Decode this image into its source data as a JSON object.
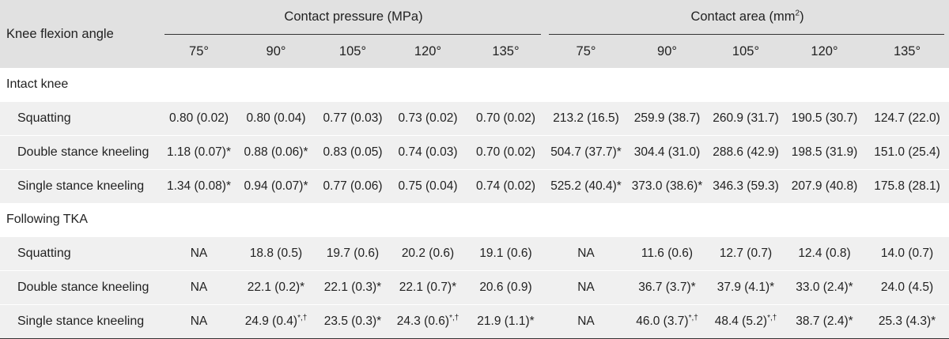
{
  "header": {
    "corner_label": "Knee flexion angle",
    "group_pressure": "Contact pressure (MPa)",
    "group_area_prefix": "Contact area (mm",
    "group_area_sup": "2",
    "group_area_suffix": ")",
    "angles": [
      "75°",
      "90°",
      "105°",
      "120°",
      "135°"
    ]
  },
  "sections": [
    {
      "title": "Intact knee",
      "rows": [
        {
          "label": "Squatting",
          "cells": [
            {
              "v": "0.80 (0.02)",
              "m": ""
            },
            {
              "v": "0.80 (0.04)",
              "m": ""
            },
            {
              "v": "0.77 (0.03)",
              "m": ""
            },
            {
              "v": "0.73 (0.02)",
              "m": ""
            },
            {
              "v": "0.70 (0.02)",
              "m": ""
            },
            {
              "v": "213.2 (16.5)",
              "m": ""
            },
            {
              "v": "259.9 (38.7)",
              "m": ""
            },
            {
              "v": "260.9 (31.7)",
              "m": ""
            },
            {
              "v": "190.5 (30.7)",
              "m": ""
            },
            {
              "v": "124.7 (22.0)",
              "m": ""
            }
          ]
        },
        {
          "label": "Double stance kneeling",
          "cells": [
            {
              "v": "1.18 (0.07)*",
              "m": ""
            },
            {
              "v": "0.88 (0.06)*",
              "m": ""
            },
            {
              "v": "0.83 (0.05)",
              "m": ""
            },
            {
              "v": "0.74 (0.03)",
              "m": ""
            },
            {
              "v": "0.70 (0.02)",
              "m": ""
            },
            {
              "v": "504.7 (37.7)*",
              "m": ""
            },
            {
              "v": "304.4 (31.0)",
              "m": ""
            },
            {
              "v": "288.6 (42.9)",
              "m": ""
            },
            {
              "v": "198.5 (31.9)",
              "m": ""
            },
            {
              "v": "151.0 (25.4)",
              "m": ""
            }
          ]
        },
        {
          "label": "Single stance kneeling",
          "cells": [
            {
              "v": "1.34 (0.08)*",
              "m": ""
            },
            {
              "v": "0.94 (0.07)*",
              "m": ""
            },
            {
              "v": "0.77 (0.06)",
              "m": ""
            },
            {
              "v": "0.75 (0.04)",
              "m": ""
            },
            {
              "v": "0.74 (0.02)",
              "m": ""
            },
            {
              "v": "525.2 (40.4)*",
              "m": ""
            },
            {
              "v": "373.0 (38.6)*",
              "m": ""
            },
            {
              "v": "346.3 (59.3)",
              "m": ""
            },
            {
              "v": "207.9 (40.8)",
              "m": ""
            },
            {
              "v": "175.8 (28.1)",
              "m": ""
            }
          ]
        }
      ]
    },
    {
      "title": "Following TKA",
      "rows": [
        {
          "label": "Squatting",
          "cells": [
            {
              "v": "NA",
              "m": ""
            },
            {
              "v": "18.8 (0.5)",
              "m": ""
            },
            {
              "v": "19.7 (0.6)",
              "m": ""
            },
            {
              "v": "20.2 (0.6)",
              "m": ""
            },
            {
              "v": "19.1 (0.6)",
              "m": ""
            },
            {
              "v": "NA",
              "m": ""
            },
            {
              "v": "11.6 (0.6)",
              "m": ""
            },
            {
              "v": "12.7 (0.7)",
              "m": ""
            },
            {
              "v": "12.4 (0.8)",
              "m": ""
            },
            {
              "v": "14.0 (0.7)",
              "m": ""
            }
          ]
        },
        {
          "label": "Double stance kneeling",
          "cells": [
            {
              "v": "NA",
              "m": ""
            },
            {
              "v": "22.1 (0.2)*",
              "m": ""
            },
            {
              "v": "22.1 (0.3)*",
              "m": ""
            },
            {
              "v": "22.1 (0.7)*",
              "m": ""
            },
            {
              "v": "20.6 (0.9)",
              "m": ""
            },
            {
              "v": "NA",
              "m": ""
            },
            {
              "v": "36.7 (3.7)*",
              "m": ""
            },
            {
              "v": "37.9 (4.1)*",
              "m": ""
            },
            {
              "v": "33.0 (2.4)*",
              "m": ""
            },
            {
              "v": "24.0 (4.5)",
              "m": ""
            }
          ]
        },
        {
          "label": "Single stance kneeling",
          "cells": [
            {
              "v": "NA",
              "m": ""
            },
            {
              "v": "24.9 (0.4)",
              "m": "*,†"
            },
            {
              "v": "23.5 (0.3)*",
              "m": ""
            },
            {
              "v": "24.3 (0.6)",
              "m": "*,†"
            },
            {
              "v": "21.9 (1.1)*",
              "m": ""
            },
            {
              "v": "NA",
              "m": ""
            },
            {
              "v": "46.0 (3.7)",
              "m": "*,†"
            },
            {
              "v": "48.4 (5.2)",
              "m": "*,†"
            },
            {
              "v": "38.7 (2.4)*",
              "m": ""
            },
            {
              "v": "25.3 (4.3)*",
              "m": ""
            }
          ]
        }
      ]
    }
  ]
}
